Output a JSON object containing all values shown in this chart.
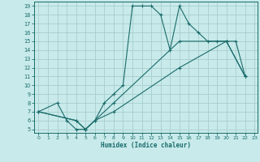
{
  "xlabel": "Humidex (Indice chaleur)",
  "bg_color": "#c8eaea",
  "grid_color": "#a8cdcd",
  "line_color": "#1a6b6b",
  "xlim_min": -0.5,
  "xlim_max": 23.3,
  "ylim_min": 4.6,
  "ylim_max": 19.5,
  "xticks": [
    0,
    1,
    2,
    3,
    4,
    5,
    6,
    7,
    8,
    9,
    10,
    11,
    12,
    13,
    14,
    15,
    16,
    17,
    18,
    19,
    20,
    21,
    22,
    23
  ],
  "yticks": [
    5,
    6,
    7,
    8,
    9,
    10,
    11,
    12,
    13,
    14,
    15,
    16,
    17,
    18,
    19
  ],
  "curve1_x": [
    0,
    2,
    3,
    4,
    5,
    6,
    7,
    8,
    9,
    10,
    11,
    12,
    13,
    14,
    15,
    16,
    17,
    18,
    19,
    20,
    21,
    22
  ],
  "curve1_y": [
    7,
    8,
    6,
    5,
    5,
    6,
    8,
    9,
    10,
    19,
    19,
    19,
    18,
    14,
    19,
    17,
    16,
    15,
    15,
    15,
    15,
    11
  ],
  "curve2_x": [
    0,
    4,
    5,
    6,
    8,
    15,
    20,
    22
  ],
  "curve2_y": [
    7,
    6,
    5,
    6,
    8,
    15,
    15,
    11
  ],
  "curve3_x": [
    0,
    4,
    5,
    6,
    8,
    15,
    20,
    22
  ],
  "curve3_y": [
    7,
    6,
    5,
    6,
    7,
    12,
    15,
    11
  ]
}
